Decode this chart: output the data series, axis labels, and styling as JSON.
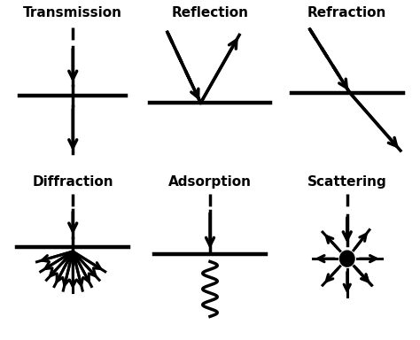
{
  "titles": [
    "Transmission",
    "Reflection",
    "Refraction",
    "Diffraction",
    "Adsorption",
    "Scattering"
  ],
  "bg_color": "#ffffff",
  "line_color": "#000000",
  "text_color": "#000000",
  "figsize": [
    4.74,
    3.84
  ],
  "dpi": 100,
  "lw_surface": 3.2,
  "lw_arrow": 2.5,
  "lw_fan": 2.2,
  "arrow_ms": 16,
  "fan_ms": 13
}
